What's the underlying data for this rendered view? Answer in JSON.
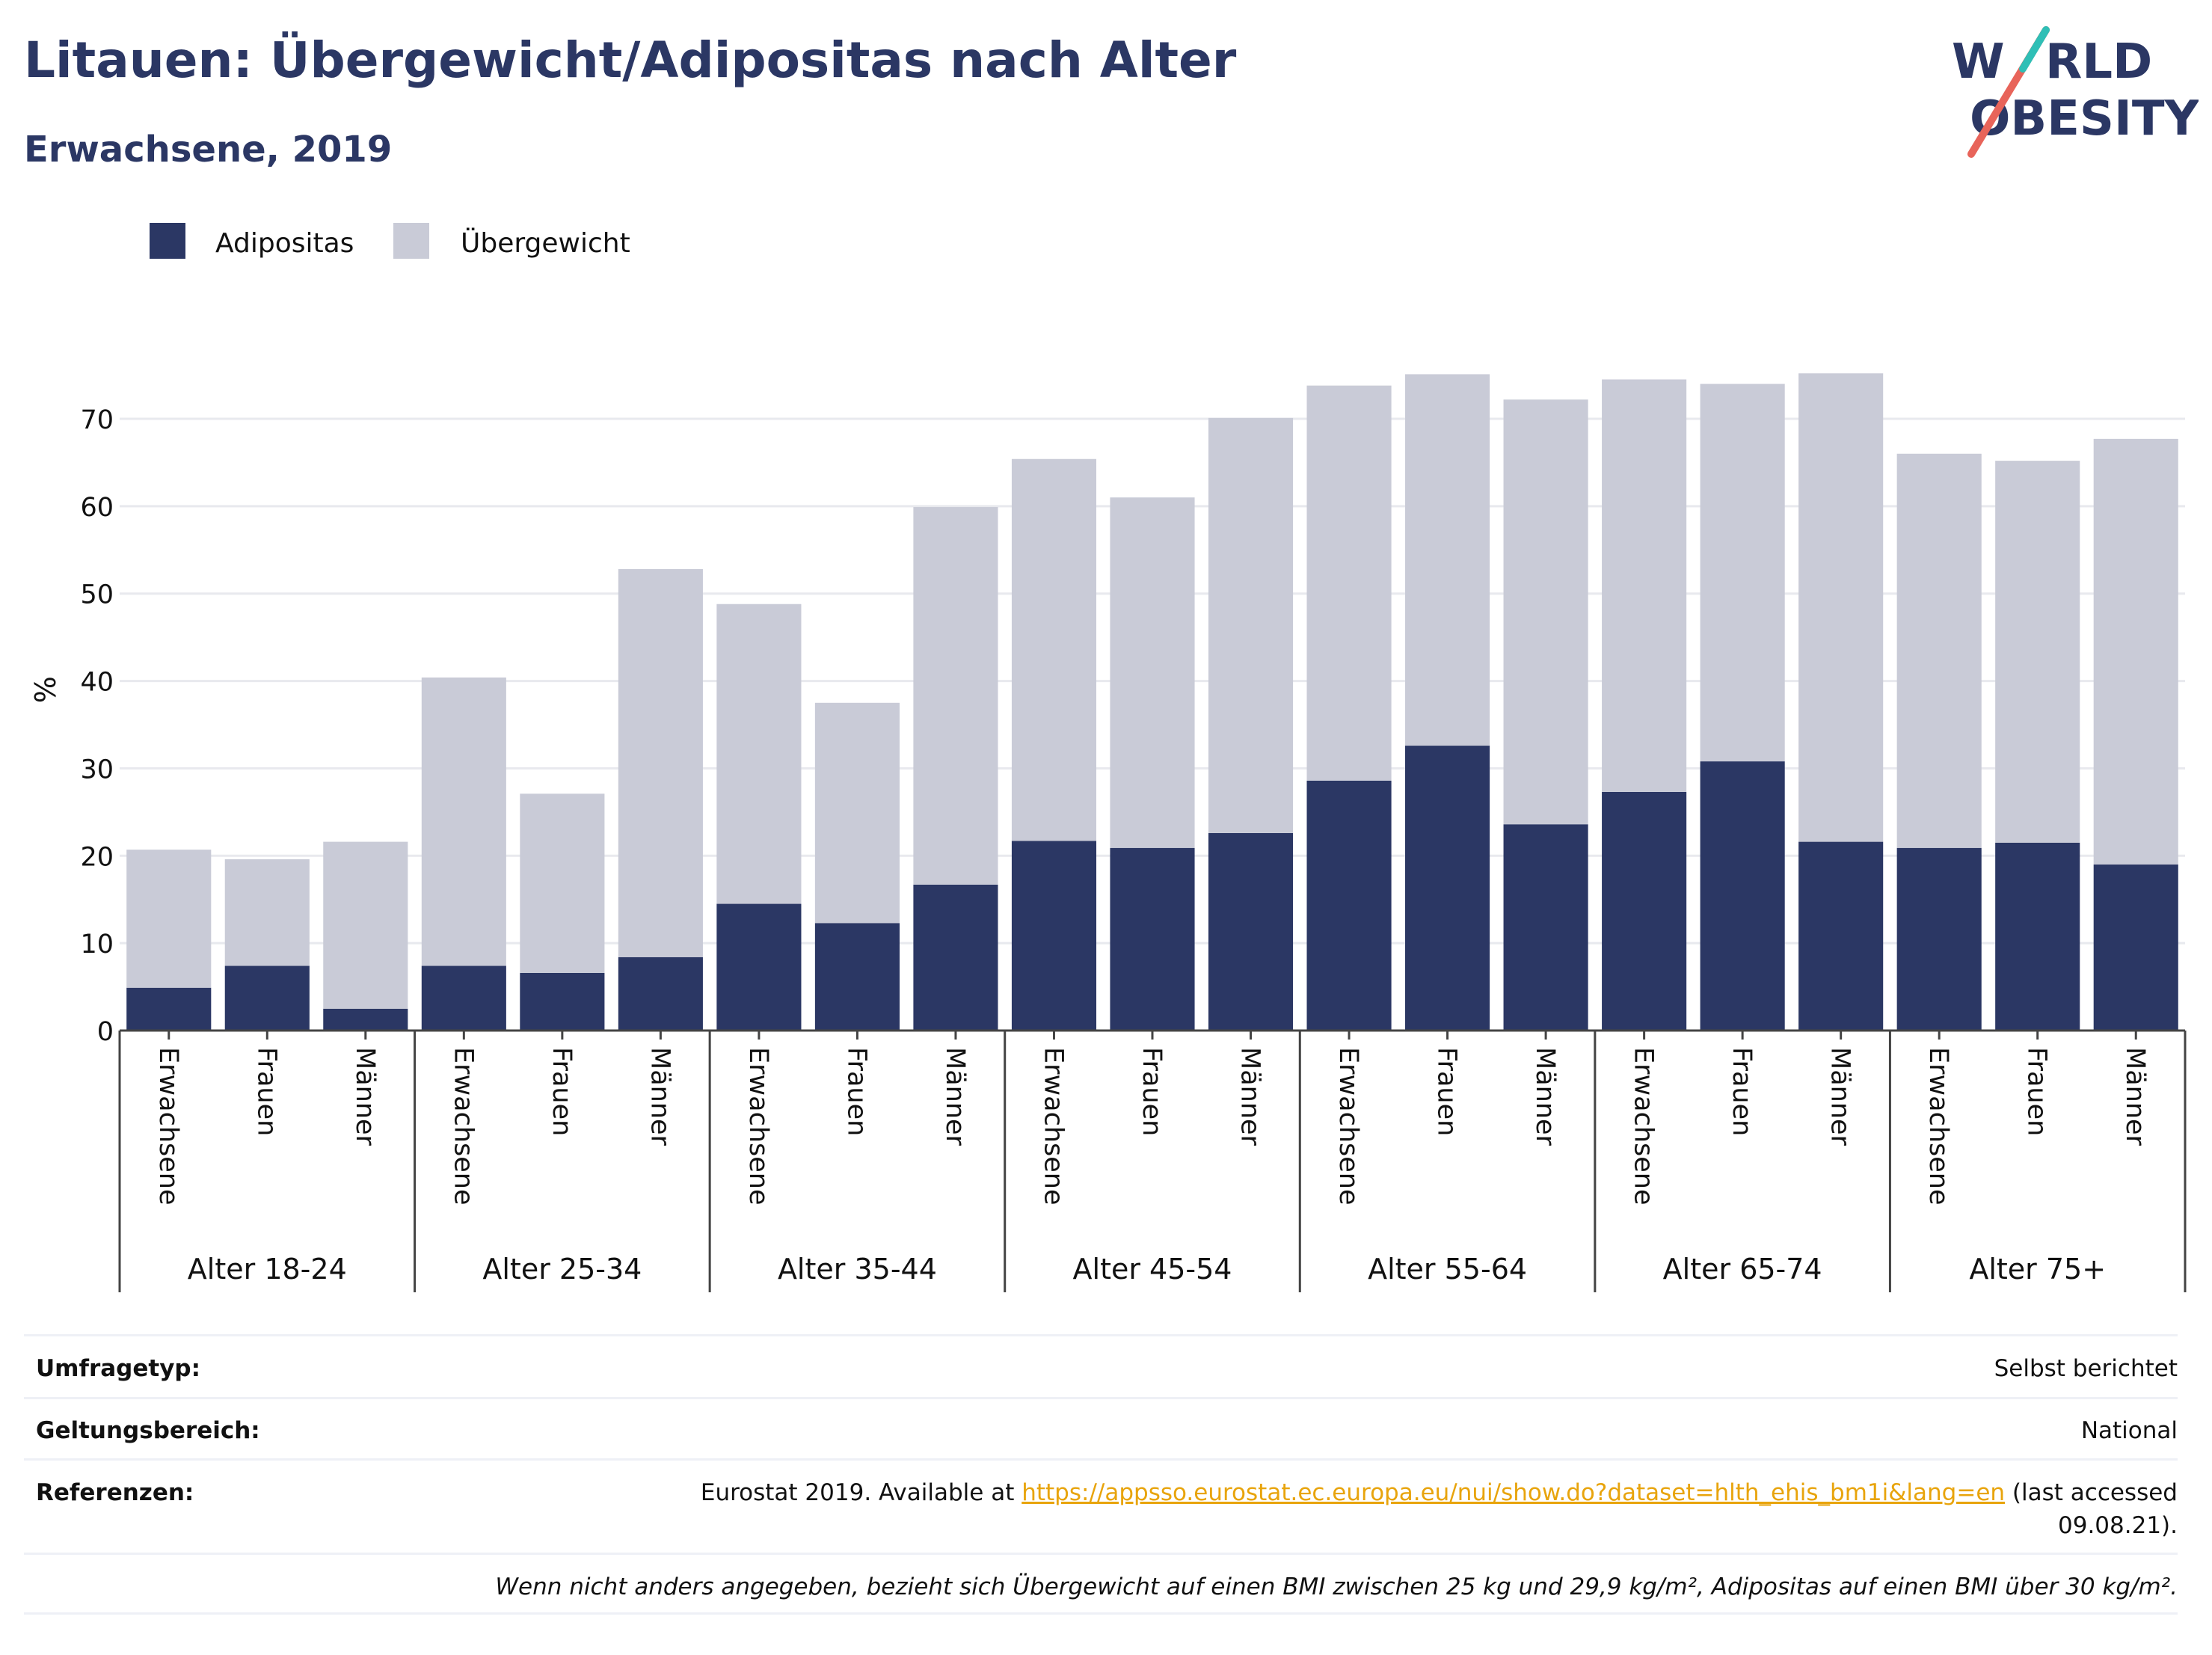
{
  "title": "Litauen: Übergewicht/Adipositas nach Alter",
  "subtitle": "Erwachsene, 2019",
  "logo": {
    "line1": "WORLD",
    "line2": "OBESITY"
  },
  "colors": {
    "adipositas": "#2b3764",
    "uebergewicht": "#c9cbd7",
    "accent_red": "#e8645a",
    "accent_teal": "#2fbfb6",
    "link": "#e8a40c"
  },
  "chart_data": {
    "type": "bar",
    "stacked": true,
    "ylabel": "%",
    "ylim": [
      0,
      78
    ],
    "yticks": [
      0,
      10,
      20,
      30,
      40,
      50,
      60,
      70
    ],
    "grid": true,
    "legend_position": "top-left",
    "groups": [
      "Alter 18-24",
      "Alter 25-34",
      "Alter 35-44",
      "Alter 45-54",
      "Alter 55-64",
      "Alter 65-74",
      "Alter 75+"
    ],
    "subcategories": [
      "Erwachsene",
      "Frauen",
      "Männer"
    ],
    "series": [
      {
        "name": "Adipositas",
        "color": "#2b3764",
        "values": [
          4.9,
          7.4,
          2.5,
          7.4,
          6.6,
          8.4,
          14.5,
          12.3,
          16.7,
          21.7,
          20.9,
          22.6,
          28.6,
          32.6,
          23.6,
          27.3,
          30.8,
          21.6,
          20.9,
          21.5,
          19.0
        ]
      },
      {
        "name": "Übergewicht",
        "color": "#c9cbd7",
        "values": [
          15.8,
          12.2,
          19.1,
          33.0,
          20.5,
          44.4,
          34.3,
          25.2,
          43.2,
          43.7,
          40.1,
          47.5,
          45.2,
          42.5,
          48.6,
          47.2,
          43.2,
          53.6,
          45.1,
          43.7,
          48.7
        ]
      }
    ]
  },
  "info": {
    "survey_label": "Umfragetyp:",
    "survey_value": "Selbst berichtet",
    "scope_label": "Geltungsbereich:",
    "scope_value": "National",
    "ref_label": "Referenzen:",
    "ref_prefix": "Eurostat 2019. Available at ",
    "ref_link": "https://appsso.eurostat.ec.europa.eu/nui/show.do?dataset=hlth_ehis_bm1i&lang=en",
    "ref_suffix": " (last accessed",
    "ref_date": "09.08.21).",
    "footnote": "Wenn nicht anders angegeben, bezieht sich Übergewicht auf einen BMI zwischen 25 kg und 29,9 kg/m², Adipositas auf einen BMI über 30 kg/m²."
  }
}
